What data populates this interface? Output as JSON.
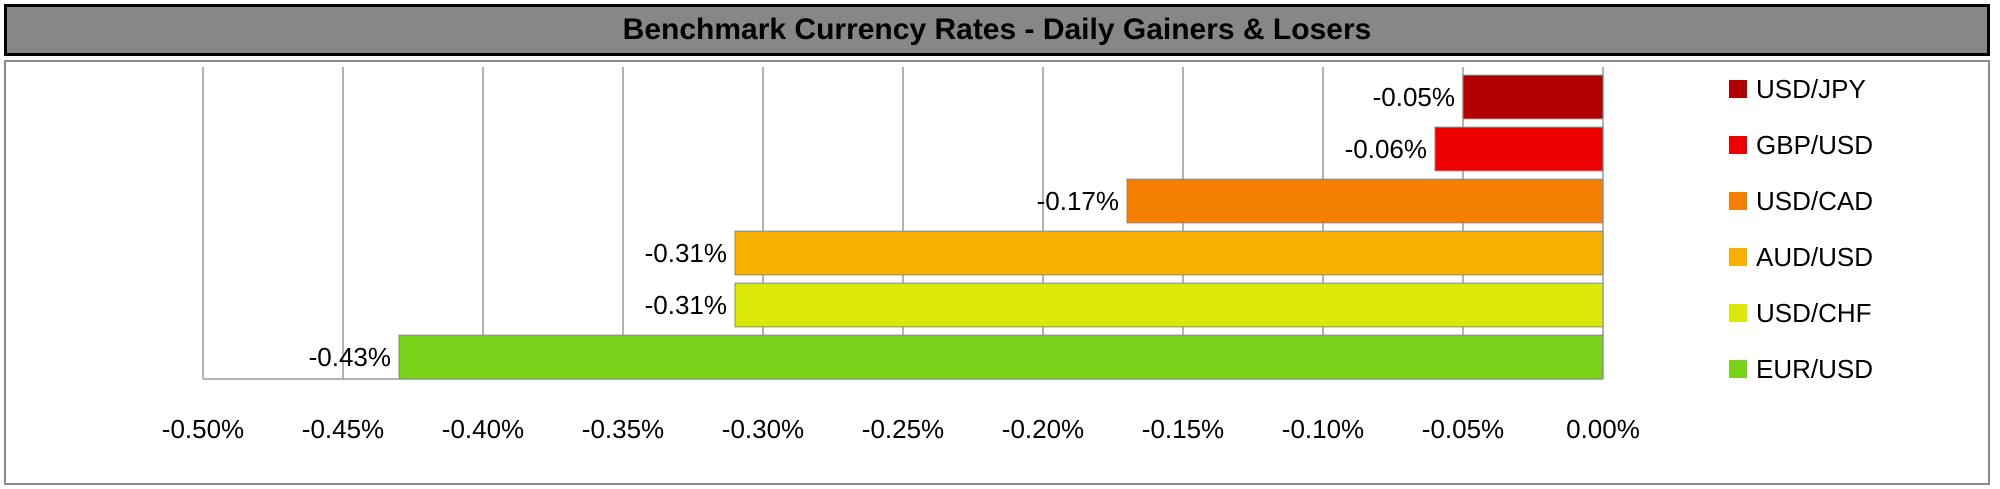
{
  "chart_data": {
    "type": "bar",
    "orientation": "horizontal",
    "title": "Benchmark Currency Rates - Daily Gainers & Losers",
    "xlabel": "",
    "ylabel": "",
    "xlim": [
      -0.5,
      0.0
    ],
    "grid": true,
    "legend_position": "right",
    "x_ticks": [
      "-0.50%",
      "-0.45%",
      "-0.40%",
      "-0.35%",
      "-0.30%",
      "-0.25%",
      "-0.20%",
      "-0.15%",
      "-0.10%",
      "-0.05%",
      "0.00%"
    ],
    "tick_values": [
      -0.5,
      -0.45,
      -0.4,
      -0.35,
      -0.3,
      -0.25,
      -0.2,
      -0.15,
      -0.1,
      -0.05,
      0.0
    ],
    "categories": [
      "USD/JPY",
      "GBP/USD",
      "USD/CAD",
      "AUD/USD",
      "USD/CHF",
      "EUR/USD"
    ],
    "values": [
      -0.05,
      -0.06,
      -0.17,
      -0.31,
      -0.31,
      -0.43
    ],
    "data_labels": [
      "-0.05%",
      "-0.06%",
      "-0.17%",
      "-0.31%",
      "-0.31%",
      "-0.43%"
    ],
    "colors": [
      "#b20000",
      "#ee0000",
      "#f57f00",
      "#f7af00",
      "#dbe80a",
      "#78d31a"
    ]
  }
}
